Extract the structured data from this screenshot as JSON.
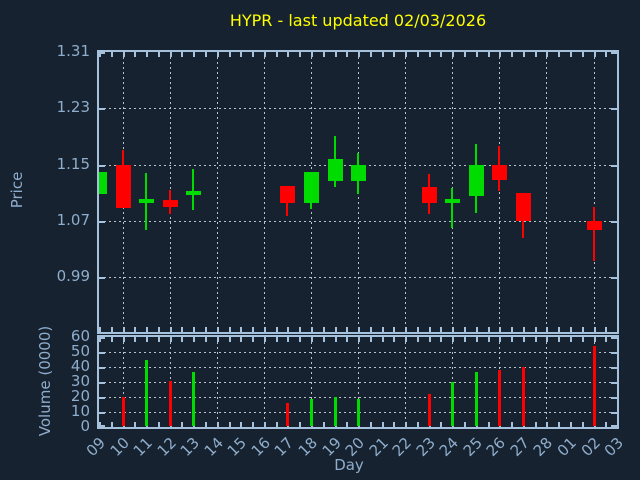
{
  "title": {
    "text": "HYPR - last updated 02/03/2026"
  },
  "axes": {
    "price_label": "Price",
    "volume_label": "Volume (0000)",
    "x_label": "Day"
  },
  "colors": {
    "background": "#16222f",
    "axis": "#a6c1dc",
    "label": "#8fadcc",
    "grid": "#b9c1c9",
    "title": "#ffff00",
    "up": "#00dc00",
    "down": "#ff0000"
  },
  "chart_data": [
    {
      "type": "candlestick",
      "title": "HYPR - last updated 02/03/2026",
      "xlabel": "Day",
      "ylabel": "Price",
      "ylim": [
        0.912,
        1.31
      ],
      "yticks": [
        0.99,
        1.07,
        1.15,
        1.23,
        1.31
      ],
      "grid": "dotted, vertical line every 2nd day starting at day 10",
      "categories": [
        "09",
        "10",
        "11",
        "12",
        "13",
        "14",
        "15",
        "16",
        "17",
        "18",
        "19",
        "20",
        "21",
        "22",
        "23",
        "24",
        "25",
        "26",
        "27",
        "28",
        "01",
        "02",
        "03"
      ],
      "ohlc": [
        {
          "day": "09",
          "open": 1.108,
          "high": 1.14,
          "low": 1.108,
          "close": 1.14
        },
        {
          "day": "10",
          "open": 1.15,
          "high": 1.171,
          "low": 1.088,
          "close": 1.088
        },
        {
          "day": "11",
          "open": 1.096,
          "high": 1.138,
          "low": 1.057,
          "close": 1.101
        },
        {
          "day": "12",
          "open": 1.1,
          "high": 1.114,
          "low": 1.079,
          "close": 1.089
        },
        {
          "day": "13",
          "open": 1.106,
          "high": 1.144,
          "low": 1.086,
          "close": 1.112
        },
        {
          "day": "17",
          "open": 1.12,
          "high": 1.12,
          "low": 1.077,
          "close": 1.096
        },
        {
          "day": "18",
          "open": 1.096,
          "high": 1.14,
          "low": 1.087,
          "close": 1.14
        },
        {
          "day": "19",
          "open": 1.126,
          "high": 1.19,
          "low": 1.118,
          "close": 1.158
        },
        {
          "day": "20",
          "open": 1.126,
          "high": 1.167,
          "low": 1.108,
          "close": 1.15
        },
        {
          "day": "23",
          "open": 1.118,
          "high": 1.137,
          "low": 1.079,
          "close": 1.096
        },
        {
          "day": "24",
          "open": 1.095,
          "high": 1.117,
          "low": 1.06,
          "close": 1.101
        },
        {
          "day": "25",
          "open": 1.106,
          "high": 1.18,
          "low": 1.081,
          "close": 1.15
        },
        {
          "day": "26",
          "open": 1.15,
          "high": 1.176,
          "low": 1.113,
          "close": 1.128
        },
        {
          "day": "27",
          "open": 1.109,
          "high": 1.109,
          "low": 1.045,
          "close": 1.069
        },
        {
          "day": "02",
          "open": 1.07,
          "high": 1.09,
          "low": 1.013,
          "close": 1.057
        }
      ]
    },
    {
      "type": "bar",
      "ylabel": "Volume (0000)",
      "ylim": [
        0,
        60
      ],
      "yticks": [
        0,
        10,
        20,
        30,
        40,
        50,
        60
      ],
      "values": [
        {
          "day": "10",
          "value": 20,
          "dir": "down"
        },
        {
          "day": "11",
          "value": 45,
          "dir": "up"
        },
        {
          "day": "12",
          "value": 31,
          "dir": "down"
        },
        {
          "day": "13",
          "value": 37,
          "dir": "up"
        },
        {
          "day": "17",
          "value": 16,
          "dir": "down"
        },
        {
          "day": "18",
          "value": 19,
          "dir": "up"
        },
        {
          "day": "19",
          "value": 20,
          "dir": "up"
        },
        {
          "day": "20",
          "value": 19,
          "dir": "up"
        },
        {
          "day": "23",
          "value": 22,
          "dir": "down"
        },
        {
          "day": "24",
          "value": 30,
          "dir": "up"
        },
        {
          "day": "25",
          "value": 37,
          "dir": "up"
        },
        {
          "day": "26",
          "value": 38,
          "dir": "down"
        },
        {
          "day": "27",
          "value": 40,
          "dir": "down"
        },
        {
          "day": "02",
          "value": 54,
          "dir": "down"
        }
      ]
    }
  ]
}
